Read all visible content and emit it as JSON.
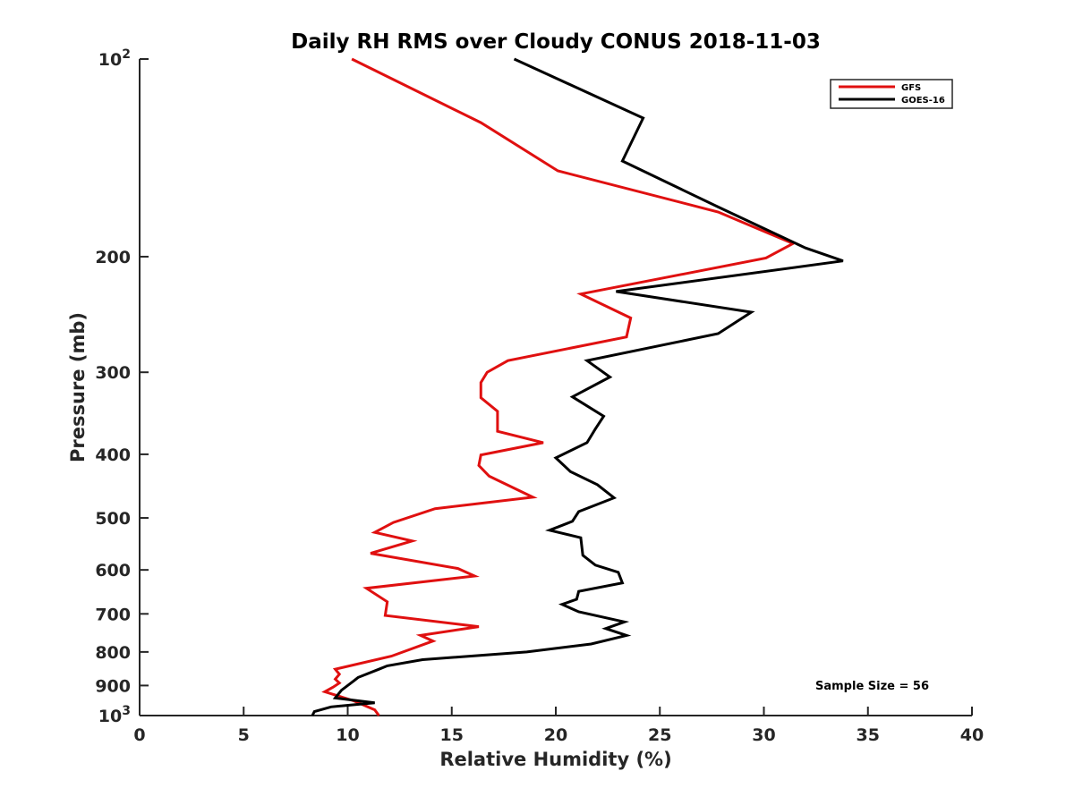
{
  "chart_data": {
    "type": "line",
    "title": "Daily RH RMS over Cloudy CONUS 2018-11-03",
    "xlabel": "Relative Humidity (%)",
    "ylabel": "Pressure (mb)",
    "xlim": [
      0,
      40
    ],
    "ylim": [
      100,
      1000
    ],
    "y_scale": "log",
    "y_direction": "reversed",
    "grid": false,
    "legend_location": "top-right",
    "x_ticks": [
      "0",
      "5",
      "10",
      "15",
      "20",
      "25",
      "30",
      "35",
      "40"
    ],
    "y_ticks": [
      {
        "value": 100,
        "base": "10",
        "exp": "2"
      },
      {
        "value": 200,
        "label": "200"
      },
      {
        "value": 300,
        "label": "300"
      },
      {
        "value": 400,
        "label": "400"
      },
      {
        "value": 500,
        "label": "500"
      },
      {
        "value": 600,
        "label": "600"
      },
      {
        "value": 700,
        "label": "700"
      },
      {
        "value": 800,
        "label": "800"
      },
      {
        "value": 900,
        "label": "900"
      },
      {
        "value": 1000,
        "base": "10",
        "exp": "3"
      }
    ],
    "annotation": "Sample Size = 56",
    "series": [
      {
        "name": "GFS",
        "color": "#e01010",
        "points": [
          [
            10.2,
            100
          ],
          [
            16.4,
            125
          ],
          [
            20.1,
            148
          ],
          [
            27.8,
            171
          ],
          [
            31.4,
            191
          ],
          [
            30.1,
            201
          ],
          [
            21.2,
            228
          ],
          [
            23.6,
            248
          ],
          [
            23.4,
            265
          ],
          [
            17.7,
            288
          ],
          [
            16.7,
            300
          ],
          [
            16.4,
            311
          ],
          [
            16.4,
            328
          ],
          [
            17.2,
            344
          ],
          [
            17.2,
            369
          ],
          [
            19.4,
            384
          ],
          [
            16.4,
            401
          ],
          [
            16.3,
            416
          ],
          [
            16.8,
            432
          ],
          [
            18.9,
            465
          ],
          [
            14.2,
            484
          ],
          [
            12.2,
            508
          ],
          [
            11.3,
            526
          ],
          [
            13.1,
            542
          ],
          [
            11.1,
            566
          ],
          [
            15.3,
            597
          ],
          [
            16.1,
            613
          ],
          [
            10.9,
            640
          ],
          [
            11.9,
            671
          ],
          [
            11.8,
            704
          ],
          [
            16.3,
            732
          ],
          [
            13.5,
            755
          ],
          [
            14.1,
            770
          ],
          [
            12.1,
            812
          ],
          [
            9.4,
            850
          ],
          [
            9.6,
            865
          ],
          [
            9.4,
            880
          ],
          [
            9.6,
            892
          ],
          [
            9.3,
            905
          ],
          [
            8.9,
            920
          ],
          [
            10.3,
            950
          ],
          [
            11.3,
            980
          ],
          [
            11.5,
            1000
          ]
        ]
      },
      {
        "name": "GOES-16",
        "color": "#000000",
        "points": [
          [
            18.0,
            100
          ],
          [
            24.2,
            123
          ],
          [
            23.2,
            143
          ],
          [
            27.8,
            168
          ],
          [
            32.0,
            194
          ],
          [
            33.8,
            203
          ],
          [
            22.9,
            226
          ],
          [
            29.4,
            243
          ],
          [
            27.8,
            262
          ],
          [
            21.5,
            288
          ],
          [
            22.6,
            305
          ],
          [
            20.8,
            327
          ],
          [
            22.3,
            350
          ],
          [
            21.9,
            366
          ],
          [
            21.5,
            384
          ],
          [
            20.0,
            405
          ],
          [
            20.7,
            425
          ],
          [
            22.0,
            445
          ],
          [
            22.8,
            466
          ],
          [
            21.1,
            489
          ],
          [
            20.8,
            506
          ],
          [
            19.7,
            522
          ],
          [
            21.2,
            536
          ],
          [
            21.3,
            570
          ],
          [
            21.9,
            590
          ],
          [
            23.0,
            605
          ],
          [
            23.2,
            628
          ],
          [
            21.1,
            647
          ],
          [
            21.0,
            665
          ],
          [
            20.3,
            677
          ],
          [
            21.1,
            695
          ],
          [
            23.3,
            720
          ],
          [
            22.4,
            737
          ],
          [
            23.4,
            755
          ],
          [
            21.7,
            778
          ],
          [
            18.6,
            800
          ],
          [
            13.6,
            822
          ],
          [
            11.9,
            840
          ],
          [
            11.5,
            850
          ],
          [
            10.5,
            875
          ],
          [
            10.3,
            885
          ],
          [
            9.7,
            915
          ],
          [
            9.4,
            940
          ],
          [
            11.3,
            956
          ],
          [
            9.2,
            970
          ],
          [
            8.4,
            986
          ],
          [
            8.3,
            1000
          ]
        ]
      }
    ]
  }
}
